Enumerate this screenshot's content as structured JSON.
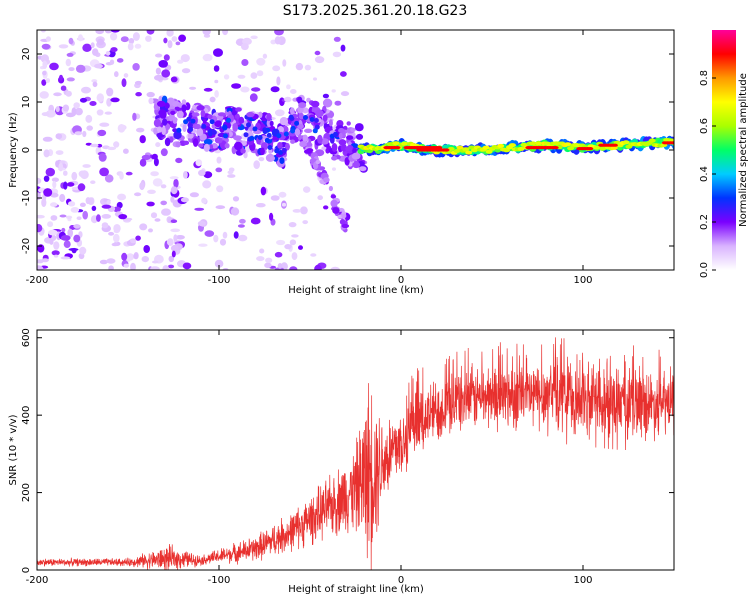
{
  "title": "S173.2025.361.20.18.G23",
  "chart_data": [
    {
      "type": "heatmap",
      "xlabel": "Height of straight line (km)",
      "ylabel": "Frequency (Hz)",
      "xlim": [
        -200,
        150
      ],
      "ylim": [
        -25,
        25
      ],
      "xticks": [
        {
          "value": -200,
          "label": "-200"
        },
        {
          "value": -100,
          "label": "-100"
        },
        {
          "value": 0,
          "label": "0"
        },
        {
          "value": 100,
          "label": "100"
        }
      ],
      "yticks": [
        {
          "value": 20,
          "label": "20"
        },
        {
          "value": 10,
          "label": "10"
        },
        {
          "value": 0,
          "label": "0"
        },
        {
          "value": -10,
          "label": "-10"
        },
        {
          "value": -20,
          "label": "-20"
        }
      ],
      "colorbar": {
        "label": "Normalized spectral amplitude",
        "range": [
          0,
          1
        ],
        "ticks": [
          {
            "value": 0.0,
            "label": "0.0"
          },
          {
            "value": 0.2,
            "label": "0.2"
          },
          {
            "value": 0.4,
            "label": "0.4"
          },
          {
            "value": 0.6,
            "label": "0.6"
          },
          {
            "value": 0.8,
            "label": "0.8"
          }
        ],
        "colors": [
          "#ffffff",
          "#d9b3ff",
          "#7a00ff",
          "#0033ff",
          "#00ccff",
          "#00ff66",
          "#aaff00",
          "#ffff00",
          "#ff9900",
          "#ff0000",
          "#ff0099"
        ]
      },
      "ridge": [
        {
          "x": -130,
          "y": 6
        },
        {
          "x": -110,
          "y": 5
        },
        {
          "x": -90,
          "y": 4
        },
        {
          "x": -75,
          "y": 3
        },
        {
          "x": -65,
          "y": 1
        },
        {
          "x": -58,
          "y": 7
        },
        {
          "x": -45,
          "y": 5
        },
        {
          "x": -35,
          "y": 2
        },
        {
          "x": -20,
          "y": 0
        },
        {
          "x": 0,
          "y": 1
        },
        {
          "x": 20,
          "y": 0
        },
        {
          "x": 40,
          "y": 0
        },
        {
          "x": 60,
          "y": 0.5
        },
        {
          "x": 80,
          "y": 1
        },
        {
          "x": 100,
          "y": 0.5
        },
        {
          "x": 120,
          "y": 1
        },
        {
          "x": 140,
          "y": 1.5
        },
        {
          "x": 150,
          "y": 1.5
        }
      ],
      "descending_branch": [
        {
          "x": -60,
          "y": 7
        },
        {
          "x": -50,
          "y": 0
        },
        {
          "x": -40,
          "y": -8
        },
        {
          "x": -30,
          "y": -16
        }
      ]
    },
    {
      "type": "line",
      "xlabel": "Height of straight line (km)",
      "ylabel": "SNR (10 * v/v)",
      "xlim": [
        -200,
        150
      ],
      "ylim": [
        0,
        620
      ],
      "xticks": [
        {
          "value": -200,
          "label": "-200"
        },
        {
          "value": -100,
          "label": "-100"
        },
        {
          "value": 0,
          "label": "0"
        },
        {
          "value": 100,
          "label": "100"
        }
      ],
      "yticks": [
        {
          "value": 600,
          "label": "600"
        },
        {
          "value": 400,
          "label": "400"
        },
        {
          "value": 200,
          "label": "200"
        },
        {
          "value": 0,
          "label": "0"
        }
      ],
      "color": "#e8302e",
      "envelope": [
        {
          "x": -200,
          "mean": 20,
          "amp": 12
        },
        {
          "x": -150,
          "mean": 20,
          "amp": 12
        },
        {
          "x": -127,
          "mean": 30,
          "amp": 40
        },
        {
          "x": -110,
          "mean": 25,
          "amp": 15
        },
        {
          "x": -80,
          "mean": 55,
          "amp": 40
        },
        {
          "x": -60,
          "mean": 100,
          "amp": 60
        },
        {
          "x": -40,
          "mean": 160,
          "amp": 90
        },
        {
          "x": -25,
          "mean": 210,
          "amp": 130
        },
        {
          "x": -17,
          "mean": 260,
          "amp": 300
        },
        {
          "x": -10,
          "mean": 280,
          "amp": 140
        },
        {
          "x": 0,
          "mean": 330,
          "amp": 120
        },
        {
          "x": 15,
          "mean": 400,
          "amp": 100
        },
        {
          "x": 30,
          "mean": 440,
          "amp": 100
        },
        {
          "x": 50,
          "mean": 450,
          "amp": 100
        },
        {
          "x": 80,
          "mean": 450,
          "amp": 110
        },
        {
          "x": 100,
          "mean": 440,
          "amp": 110
        },
        {
          "x": 120,
          "mean": 430,
          "amp": 110
        },
        {
          "x": 150,
          "mean": 430,
          "amp": 100
        }
      ]
    }
  ]
}
